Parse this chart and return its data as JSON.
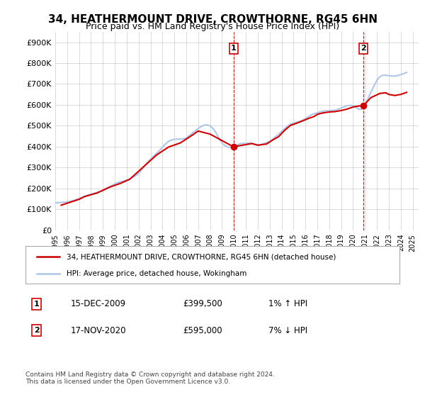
{
  "title": "34, HEATHERMOUNT DRIVE, CROWTHORNE, RG45 6HN",
  "subtitle": "Price paid vs. HM Land Registry's House Price Index (HPI)",
  "ylabel_ticks": [
    "£0",
    "£100K",
    "£200K",
    "£300K",
    "£400K",
    "£500K",
    "£600K",
    "£700K",
    "£800K",
    "£900K"
  ],
  "ytick_values": [
    0,
    100000,
    200000,
    300000,
    400000,
    500000,
    600000,
    700000,
    800000,
    900000
  ],
  "ylim": [
    0,
    950000
  ],
  "xlim_start": 1995.0,
  "xlim_end": 2025.5,
  "xtick_years": [
    1995,
    1996,
    1997,
    1998,
    1999,
    2000,
    2001,
    2002,
    2003,
    2004,
    2005,
    2006,
    2007,
    2008,
    2009,
    2010,
    2011,
    2012,
    2013,
    2014,
    2015,
    2016,
    2017,
    2018,
    2019,
    2020,
    2021,
    2022,
    2023,
    2024,
    2025
  ],
  "hpi_line_color": "#aec6e8",
  "price_line_color": "#cc0000",
  "marker_color": "#cc0000",
  "grid_color": "#cccccc",
  "background_color": "#ffffff",
  "sale1_x": 2009.96,
  "sale1_y": 399500,
  "sale1_label": "1",
  "sale2_x": 2020.88,
  "sale2_y": 595000,
  "sale2_label": "2",
  "vline_color": "#cc0000",
  "legend_red_label": "34, HEATHERMOUNT DRIVE, CROWTHORNE, RG45 6HN (detached house)",
  "legend_blue_label": "HPI: Average price, detached house, Wokingham",
  "note1_label": "1",
  "note1_date": "15-DEC-2009",
  "note1_price": "£399,500",
  "note1_hpi": "1% ↑ HPI",
  "note2_label": "2",
  "note2_date": "17-NOV-2020",
  "note2_price": "£595,000",
  "note2_hpi": "7% ↓ HPI",
  "footer": "Contains HM Land Registry data © Crown copyright and database right 2024.\nThis data is licensed under the Open Government Licence v3.0.",
  "hpi_data_x": [
    1995.0,
    1995.25,
    1995.5,
    1995.75,
    1996.0,
    1996.25,
    1996.5,
    1996.75,
    1997.0,
    1997.25,
    1997.5,
    1997.75,
    1998.0,
    1998.25,
    1998.5,
    1998.75,
    1999.0,
    1999.25,
    1999.5,
    1999.75,
    2000.0,
    2000.25,
    2000.5,
    2000.75,
    2001.0,
    2001.25,
    2001.5,
    2001.75,
    2002.0,
    2002.25,
    2002.5,
    2002.75,
    2003.0,
    2003.25,
    2003.5,
    2003.75,
    2004.0,
    2004.25,
    2004.5,
    2004.75,
    2005.0,
    2005.25,
    2005.5,
    2005.75,
    2006.0,
    2006.25,
    2006.5,
    2006.75,
    2007.0,
    2007.25,
    2007.5,
    2007.75,
    2008.0,
    2008.25,
    2008.5,
    2008.75,
    2009.0,
    2009.25,
    2009.5,
    2009.75,
    2010.0,
    2010.25,
    2010.5,
    2010.75,
    2011.0,
    2011.25,
    2011.5,
    2011.75,
    2012.0,
    2012.25,
    2012.5,
    2012.75,
    2013.0,
    2013.25,
    2013.5,
    2013.75,
    2014.0,
    2014.25,
    2014.5,
    2014.75,
    2015.0,
    2015.25,
    2015.5,
    2015.75,
    2016.0,
    2016.25,
    2016.5,
    2016.75,
    2017.0,
    2017.25,
    2017.5,
    2017.75,
    2018.0,
    2018.25,
    2018.5,
    2018.75,
    2019.0,
    2019.25,
    2019.5,
    2019.75,
    2020.0,
    2020.25,
    2020.5,
    2020.75,
    2021.0,
    2021.25,
    2021.5,
    2021.75,
    2022.0,
    2022.25,
    2022.5,
    2022.75,
    2023.0,
    2023.25,
    2023.5,
    2023.75,
    2024.0,
    2024.25,
    2024.5
  ],
  "hpi_data_y": [
    131000,
    132000,
    133000,
    134000,
    136000,
    138000,
    142000,
    147000,
    152000,
    158000,
    163000,
    168000,
    173000,
    177000,
    181000,
    185000,
    189000,
    196000,
    205000,
    214000,
    222000,
    228000,
    232000,
    236000,
    240000,
    245000,
    253000,
    261000,
    272000,
    289000,
    308000,
    325000,
    340000,
    354000,
    368000,
    381000,
    398000,
    413000,
    425000,
    432000,
    435000,
    436000,
    436000,
    437000,
    441000,
    452000,
    465000,
    476000,
    487000,
    497000,
    503000,
    504000,
    499000,
    487000,
    466000,
    441000,
    418000,
    405000,
    398000,
    396000,
    400000,
    408000,
    414000,
    416000,
    415000,
    418000,
    416000,
    412000,
    408000,
    410000,
    415000,
    420000,
    425000,
    435000,
    448000,
    460000,
    472000,
    486000,
    499000,
    508000,
    513000,
    517000,
    521000,
    527000,
    534000,
    543000,
    553000,
    558000,
    562000,
    567000,
    570000,
    572000,
    572000,
    573000,
    575000,
    579000,
    585000,
    591000,
    596000,
    598000,
    596000,
    588000,
    578000,
    580000,
    601000,
    630000,
    662000,
    690000,
    718000,
    735000,
    742000,
    742000,
    740000,
    738000,
    738000,
    740000,
    745000,
    750000,
    755000
  ],
  "price_data_x": [
    1995.5,
    1997.0,
    1997.5,
    1998.5,
    1999.5,
    2000.5,
    2001.25,
    2003.5,
    2004.5,
    2005.5,
    2006.5,
    2007.0,
    2008.0,
    2009.96,
    2010.5,
    2011.5,
    2012.0,
    2012.75,
    2013.25,
    2013.75,
    2014.25,
    2014.75,
    2015.25,
    2015.75,
    2016.25,
    2016.75,
    2017.0,
    2017.5,
    2018.0,
    2018.5,
    2019.0,
    2019.5,
    2019.75,
    2020.0,
    2020.5,
    2020.88,
    2021.25,
    2021.5,
    2022.0,
    2022.25,
    2022.75,
    2023.0,
    2023.5,
    2024.0,
    2024.5
  ],
  "price_data_y": [
    120000,
    148000,
    162000,
    178000,
    205000,
    225000,
    244000,
    360000,
    398000,
    418000,
    455000,
    475000,
    460000,
    399500,
    405000,
    415000,
    407000,
    413000,
    432000,
    448000,
    478000,
    502000,
    512000,
    523000,
    535000,
    545000,
    555000,
    562000,
    566000,
    568000,
    573000,
    580000,
    585000,
    590000,
    595000,
    595000,
    620000,
    635000,
    648000,
    655000,
    658000,
    650000,
    645000,
    650000,
    660000
  ]
}
